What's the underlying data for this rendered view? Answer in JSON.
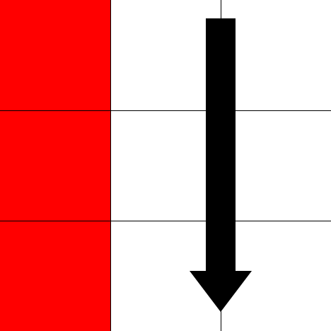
{
  "board": {
    "rows": 3,
    "cols": 3,
    "grid_line_color": "#000000",
    "empty_cell_color": "#ffffff"
  },
  "cells": [
    {
      "row": 0,
      "col": 0,
      "fill": "#ff0000",
      "state": "filled"
    },
    {
      "row": 1,
      "col": 0,
      "fill": "#ff0000",
      "state": "filled"
    },
    {
      "row": 2,
      "col": 0,
      "fill": "#ff0000",
      "state": "filled"
    },
    {
      "row": 0,
      "col": 1,
      "fill": "#ffffff",
      "state": "empty"
    },
    {
      "row": 1,
      "col": 1,
      "fill": "#ffffff",
      "state": "empty"
    },
    {
      "row": 2,
      "col": 1,
      "fill": "#ffffff",
      "state": "empty"
    },
    {
      "row": 0,
      "col": 2,
      "fill": "#ffffff",
      "state": "empty"
    },
    {
      "row": 1,
      "col": 2,
      "fill": "#ffffff",
      "state": "empty"
    },
    {
      "row": 2,
      "col": 2,
      "fill": "#ffffff",
      "state": "empty"
    }
  ],
  "arrow": {
    "icon": "arrow-down-icon",
    "direction": "down",
    "color": "#000000"
  }
}
